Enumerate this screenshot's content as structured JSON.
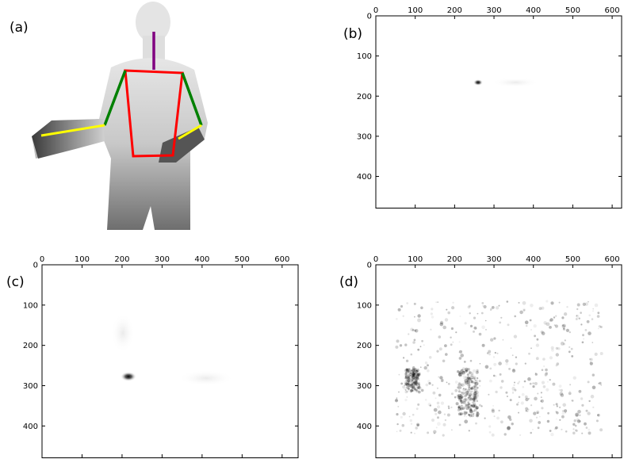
{
  "panels": [
    {
      "label": "(a)"
    },
    {
      "label": "(b)",
      "xlim": [
        0,
        624
      ],
      "ylim": [
        0,
        480
      ],
      "xticks": [
        0,
        100,
        200,
        300,
        400,
        500,
        600
      ],
      "yticks": [
        0,
        100,
        200,
        300,
        400
      ]
    },
    {
      "label": "(c)",
      "xlim": [
        0,
        640
      ],
      "ylim": [
        0,
        480
      ],
      "xticks": [
        0,
        100,
        200,
        300,
        400,
        500,
        600
      ],
      "yticks": [
        0,
        100,
        200,
        300,
        400
      ]
    },
    {
      "label": "(d)",
      "xlim": [
        0,
        624
      ],
      "ylim": [
        0,
        480
      ],
      "xticks": [
        0,
        100,
        200,
        300,
        400,
        500,
        600
      ],
      "yticks": [
        0,
        100,
        200,
        300,
        400
      ]
    }
  ]
}
